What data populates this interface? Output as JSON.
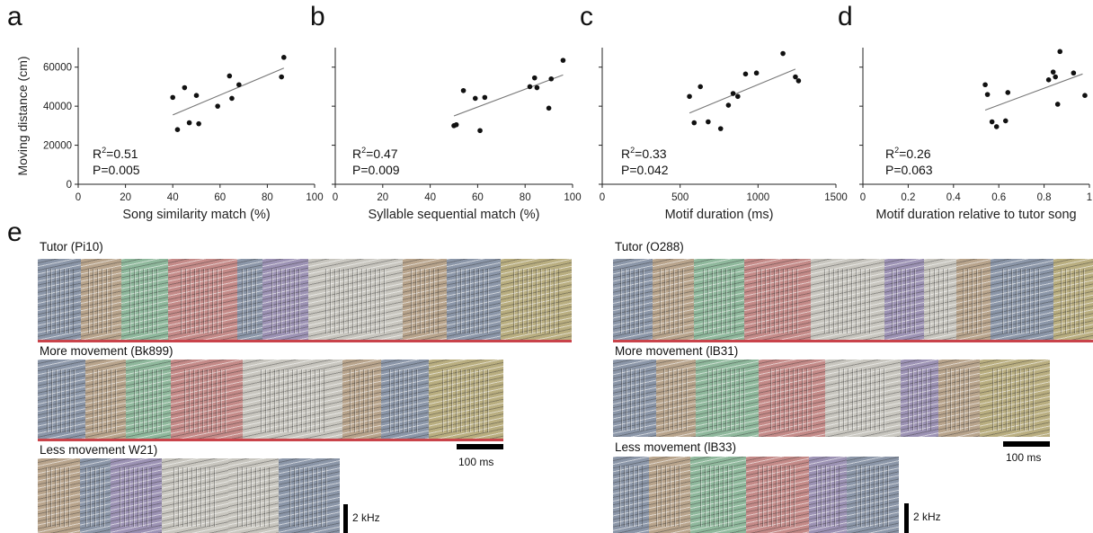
{
  "figure": {
    "panel_letters": {
      "a": "a",
      "b": "b",
      "c": "c",
      "d": "d",
      "e": "e"
    }
  },
  "chart_data": [
    {
      "type": "scatter",
      "title": "",
      "xlabel": "Song similarity match (%)",
      "ylabel": "Moving distance (cm)",
      "xlim": [
        0,
        100
      ],
      "ylim": [
        0,
        70000
      ],
      "xticks": [
        "0",
        "20",
        "40",
        "60",
        "80",
        "100"
      ],
      "yticks": [
        "0",
        "20000",
        "40000",
        "60000"
      ],
      "points": [
        [
          40,
          44500
        ],
        [
          42,
          28000
        ],
        [
          45,
          49500
        ],
        [
          47,
          31500
        ],
        [
          50,
          45500
        ],
        [
          51,
          31000
        ],
        [
          59,
          40000
        ],
        [
          64,
          55500
        ],
        [
          65,
          44000
        ],
        [
          68,
          51000
        ],
        [
          86,
          55000
        ],
        [
          87,
          65000
        ]
      ],
      "fit": [
        [
          40,
          35500
        ],
        [
          87,
          59500
        ]
      ],
      "stats": {
        "r2_label": "R",
        "r2_sup": "2",
        "r2_value": "=0.51",
        "p": "P=0.005"
      },
      "grid": false
    },
    {
      "type": "scatter",
      "title": "",
      "xlabel": "Syllable sequential match (%)",
      "ylabel": "",
      "xlim": [
        0,
        100
      ],
      "ylim": [
        0,
        70000
      ],
      "xticks": [
        "0",
        "20",
        "40",
        "60",
        "80",
        "100"
      ],
      "yticks": [],
      "points": [
        [
          50,
          30000
        ],
        [
          51,
          30500
        ],
        [
          54,
          48000
        ],
        [
          59,
          44000
        ],
        [
          61,
          27500
        ],
        [
          63,
          44500
        ],
        [
          82,
          50000
        ],
        [
          84,
          54500
        ],
        [
          85,
          49500
        ],
        [
          90,
          39000
        ],
        [
          91,
          54000
        ],
        [
          96,
          63500
        ]
      ],
      "fit": [
        [
          50,
          35000
        ],
        [
          96,
          56000
        ]
      ],
      "stats": {
        "r2_label": "R",
        "r2_sup": "2",
        "r2_value": "=0.47",
        "p": "P=0.009"
      },
      "grid": false
    },
    {
      "type": "scatter",
      "title": "",
      "xlabel": "Motif duration (ms)",
      "ylabel": "",
      "xlim": [
        0,
        1500
      ],
      "ylim": [
        0,
        70000
      ],
      "xticks": [
        "0",
        "500",
        "1000",
        "1500"
      ],
      "yticks": [],
      "points": [
        [
          560,
          45000
        ],
        [
          590,
          31500
        ],
        [
          630,
          50000
        ],
        [
          680,
          32000
        ],
        [
          760,
          28500
        ],
        [
          810,
          40500
        ],
        [
          840,
          46500
        ],
        [
          870,
          45000
        ],
        [
          920,
          56500
        ],
        [
          990,
          57000
        ],
        [
          1160,
          67000
        ],
        [
          1240,
          55000
        ],
        [
          1260,
          53000
        ]
      ],
      "fit": [
        [
          560,
          36500
        ],
        [
          1240,
          59000
        ]
      ],
      "stats": {
        "r2_label": "R",
        "r2_sup": "2",
        "r2_value": "=0.33",
        "p": "P=0.042"
      },
      "grid": false
    },
    {
      "type": "scatter",
      "title": "",
      "xlabel": "Motif duration relative to tutor song",
      "ylabel": "",
      "xlim": [
        0,
        1
      ],
      "ylim": [
        0,
        70000
      ],
      "xticks": [
        "0",
        "0.2",
        "0.4",
        "0.6",
        "0.8",
        "1"
      ],
      "yticks": [],
      "points": [
        [
          0.54,
          51000
        ],
        [
          0.55,
          46000
        ],
        [
          0.57,
          32000
        ],
        [
          0.59,
          29500
        ],
        [
          0.63,
          32500
        ],
        [
          0.64,
          47000
        ],
        [
          0.82,
          53500
        ],
        [
          0.84,
          57500
        ],
        [
          0.85,
          55000
        ],
        [
          0.86,
          41000
        ],
        [
          0.87,
          68000
        ],
        [
          0.93,
          57000
        ],
        [
          0.98,
          45500
        ]
      ],
      "fit": [
        [
          0.54,
          38000
        ],
        [
          0.97,
          56500
        ]
      ],
      "stats": {
        "r2_label": "R",
        "r2_sup": "2",
        "r2_value": "=0.26",
        "p": "P=0.063"
      },
      "grid": false
    }
  ],
  "spectrograms": {
    "left": {
      "tutor_label": "Tutor (Pi10)",
      "more_label": "More movement (Bk899)",
      "less_label": "Less movement W21)",
      "time_scale": "100 ms",
      "freq_scale": "2 kHz"
    },
    "right": {
      "tutor_label": "Tutor (O288)",
      "more_label": "More movement (lB31)",
      "less_label": "Less movement (lB33)",
      "time_scale": "100 ms",
      "freq_scale": "2 kHz"
    },
    "colors": {
      "slate": "#8b96a8",
      "tan": "#b8a48c",
      "green": "#8fb89c",
      "red": "#c48a88",
      "purple": "#9c92b4",
      "grey": "#c8c6bf",
      "olive": "#b9ae80",
      "underline": "#c9434a"
    }
  }
}
